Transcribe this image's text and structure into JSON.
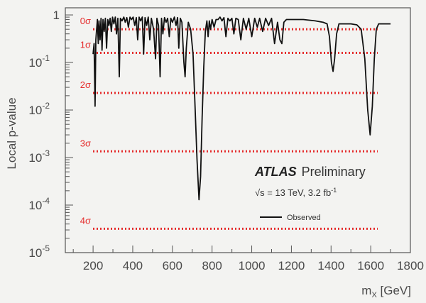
{
  "chart_data": {
    "type": "line",
    "title": "",
    "xlabel": "m",
    "xlabel_sub": "X",
    "xlabel_unit": " [GeV]",
    "ylabel": "Local p-value",
    "xlim": [
      60,
      1800
    ],
    "ylim_log10": [
      -5,
      0.15
    ],
    "yscale": "log",
    "grid": false,
    "x_ticks": [
      "200",
      "400",
      "600",
      "800",
      "1000",
      "1200",
      "1400",
      "1600",
      "1800"
    ],
    "y_ticks": [
      {
        "base": "1",
        "exp": ""
      },
      {
        "base": "10",
        "exp": "-1"
      },
      {
        "base": "10",
        "exp": "-2"
      },
      {
        "base": "10",
        "exp": "-3"
      },
      {
        "base": "10",
        "exp": "-4"
      },
      {
        "base": "10",
        "exp": "-5"
      }
    ],
    "significance_lines": [
      {
        "label": "0σ",
        "p": 0.5
      },
      {
        "label": "1σ",
        "p": 0.159
      },
      {
        "label": "2σ",
        "p": 0.0228
      },
      {
        "label": "3σ",
        "p": 0.00135
      },
      {
        "label": "4σ",
        "p": 3.17e-05
      }
    ],
    "series": [
      {
        "name": "Observed",
        "color": "#111111",
        "points": [
          [
            200,
            0.15
          ],
          [
            205,
            0.25
          ],
          [
            210,
            0.012
          ],
          [
            214,
            0.3
          ],
          [
            218,
            0.5
          ],
          [
            222,
            0.8
          ],
          [
            226,
            0.25
          ],
          [
            230,
            0.75
          ],
          [
            235,
            0.3
          ],
          [
            240,
            0.85
          ],
          [
            245,
            0.18
          ],
          [
            250,
            0.8
          ],
          [
            256,
            0.45
          ],
          [
            262,
            0.85
          ],
          [
            268,
            0.2
          ],
          [
            274,
            0.8
          ],
          [
            280,
            0.6
          ],
          [
            286,
            0.85
          ],
          [
            292,
            0.45
          ],
          [
            298,
            0.9
          ],
          [
            305,
            0.65
          ],
          [
            312,
            0.9
          ],
          [
            318,
            0.4
          ],
          [
            325,
            0.85
          ],
          [
            332,
            0.05
          ],
          [
            338,
            0.85
          ],
          [
            346,
            0.75
          ],
          [
            355,
            0.9
          ],
          [
            362,
            0.7
          ],
          [
            370,
            0.88
          ],
          [
            378,
            0.55
          ],
          [
            386,
            0.9
          ],
          [
            394,
            0.8
          ],
          [
            402,
            0.9
          ],
          [
            410,
            0.6
          ],
          [
            418,
            0.88
          ],
          [
            425,
            0.3
          ],
          [
            432,
            0.9
          ],
          [
            440,
            0.75
          ],
          [
            448,
            0.9
          ],
          [
            455,
            0.15
          ],
          [
            462,
            0.88
          ],
          [
            470,
            0.6
          ],
          [
            478,
            0.9
          ],
          [
            486,
            0.3
          ],
          [
            494,
            0.85
          ],
          [
            505,
            0.5
          ],
          [
            515,
            0.12
          ],
          [
            522,
            0.85
          ],
          [
            530,
            0.6
          ],
          [
            538,
            0.05
          ],
          [
            545,
            0.85
          ],
          [
            552,
            0.4
          ],
          [
            560,
            0.88
          ],
          [
            568,
            0.7
          ],
          [
            576,
            0.85
          ],
          [
            584,
            0.35
          ],
          [
            592,
            0.85
          ],
          [
            600,
            0.7
          ],
          [
            610,
            0.9
          ],
          [
            618,
            0.6
          ],
          [
            626,
            0.88
          ],
          [
            632,
            0.2
          ],
          [
            640,
            0.85
          ],
          [
            648,
            0.7
          ],
          [
            658,
            0.1
          ],
          [
            664,
            0.05
          ],
          [
            670,
            0.2
          ],
          [
            680,
            0.7
          ],
          [
            692,
            0.5
          ],
          [
            704,
            0.15
          ],
          [
            714,
            0.012
          ],
          [
            724,
            0.0009
          ],
          [
            734,
            0.00013
          ],
          [
            742,
            0.0004
          ],
          [
            750,
            0.007
          ],
          [
            758,
            0.08
          ],
          [
            766,
            0.45
          ],
          [
            774,
            0.75
          ],
          [
            780,
            0.35
          ],
          [
            786,
            0.75
          ],
          [
            792,
            0.5
          ],
          [
            800,
            0.8
          ],
          [
            810,
            0.55
          ],
          [
            820,
            0.8
          ],
          [
            830,
            0.8
          ],
          [
            840,
            0.9
          ],
          [
            850,
            0.75
          ],
          [
            860,
            0.88
          ],
          [
            870,
            0.35
          ],
          [
            880,
            0.85
          ],
          [
            890,
            0.75
          ],
          [
            900,
            0.85
          ],
          [
            910,
            0.4
          ],
          [
            920,
            0.85
          ],
          [
            932,
            0.8
          ],
          [
            945,
            0.3
          ],
          [
            958,
            0.85
          ],
          [
            972,
            0.5
          ],
          [
            985,
            0.85
          ],
          [
            1000,
            0.35
          ],
          [
            1015,
            0.85
          ],
          [
            1028,
            0.55
          ],
          [
            1040,
            0.85
          ],
          [
            1055,
            0.45
          ],
          [
            1070,
            0.85
          ],
          [
            1085,
            0.6
          ],
          [
            1100,
            0.85
          ],
          [
            1115,
            0.25
          ],
          [
            1130,
            0.7
          ],
          [
            1142,
            0.3
          ],
          [
            1152,
            0.25
          ],
          [
            1162,
            0.7
          ],
          [
            1175,
            0.8
          ],
          [
            1200,
            0.8
          ],
          [
            1260,
            0.8
          ],
          [
            1320,
            0.75
          ],
          [
            1360,
            0.7
          ],
          [
            1380,
            0.65
          ],
          [
            1392,
            0.35
          ],
          [
            1402,
            0.1
          ],
          [
            1410,
            0.065
          ],
          [
            1418,
            0.12
          ],
          [
            1428,
            0.4
          ],
          [
            1440,
            0.65
          ],
          [
            1470,
            0.65
          ],
          [
            1500,
            0.65
          ],
          [
            1530,
            0.62
          ],
          [
            1552,
            0.5
          ],
          [
            1570,
            0.12
          ],
          [
            1585,
            0.01
          ],
          [
            1597,
            0.003
          ],
          [
            1608,
            0.012
          ],
          [
            1618,
            0.12
          ],
          [
            1628,
            0.5
          ],
          [
            1640,
            0.65
          ],
          [
            1670,
            0.65
          ],
          [
            1700,
            0.65
          ]
        ]
      }
    ],
    "annotations": {
      "experiment": "ATLAS",
      "status": "Preliminary",
      "energy": {
        "sqrt_sym": "√s",
        "text": " = 13 TeV, 3.2 fb",
        "sup": "-1"
      }
    },
    "legend": {
      "position": "center-right",
      "entries": [
        {
          "label": "Observed",
          "style": "solid-black"
        }
      ]
    },
    "colors": {
      "background": "#f3f3f1",
      "frame": "#555555",
      "observed": "#111111",
      "significance": "#e52b2b"
    }
  }
}
